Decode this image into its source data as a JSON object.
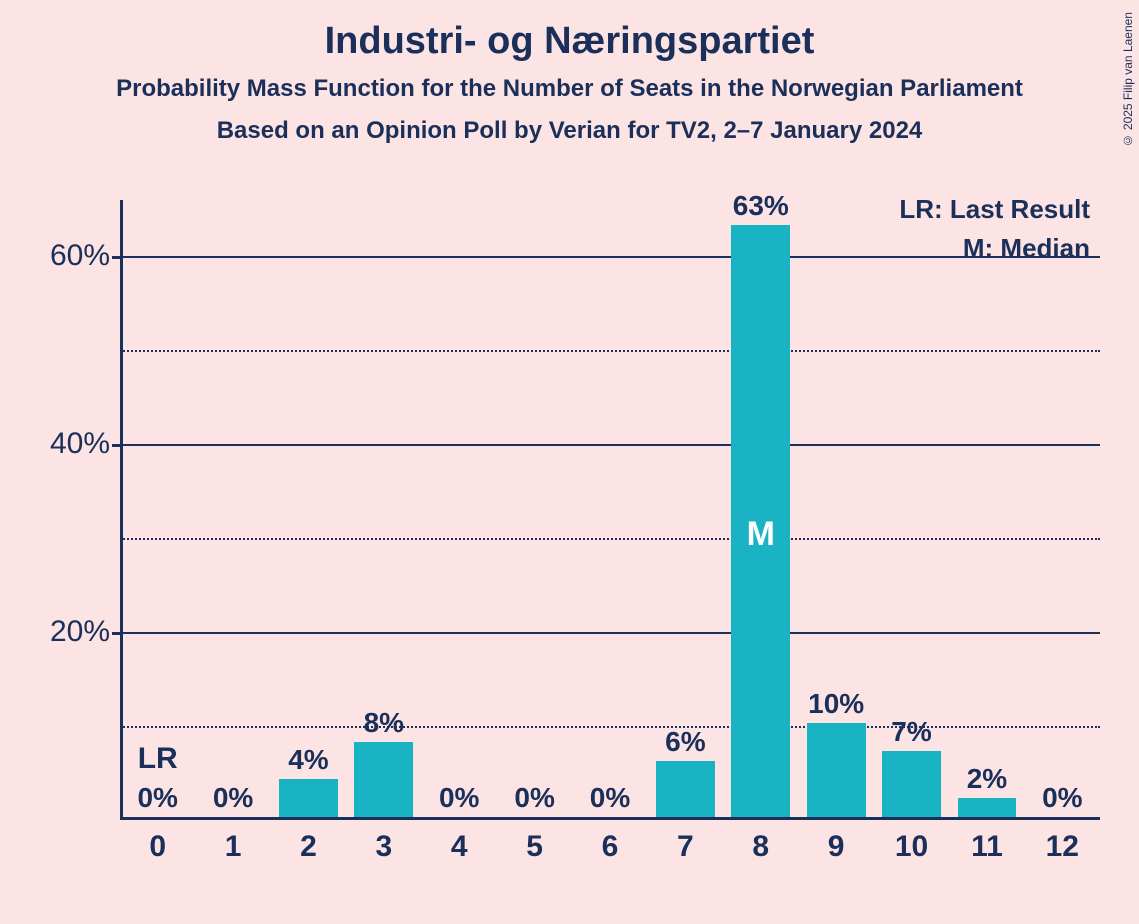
{
  "title": "Industri- og Næringspartiet",
  "subtitle1": "Probability Mass Function for the Number of Seats in the Norwegian Parliament",
  "subtitle2": "Based on an Opinion Poll by Verian for TV2, 2–7 January 2024",
  "copyright": "© 2025 Filip van Laenen",
  "legend": {
    "lr": "LR: Last Result",
    "m": "M: Median"
  },
  "chart": {
    "type": "bar",
    "background_color": "#fce4e4",
    "bar_color": "#1ab3c4",
    "axis_color": "#1a2f5a",
    "text_color": "#1a2f5a",
    "marker_text_color": "#ffffff",
    "ylim_max": 66,
    "y_major_ticks": [
      20,
      40,
      60
    ],
    "y_minor_ticks": [
      10,
      30,
      50
    ],
    "y_tick_suffix": "%",
    "categories": [
      "0",
      "1",
      "2",
      "3",
      "4",
      "5",
      "6",
      "7",
      "8",
      "9",
      "10",
      "11",
      "12"
    ],
    "values": [
      0,
      0,
      4,
      8,
      0,
      0,
      0,
      6,
      63,
      10,
      7,
      2,
      0
    ],
    "value_labels": [
      "0%",
      "0%",
      "4%",
      "8%",
      "0%",
      "0%",
      "0%",
      "6%",
      "63%",
      "10%",
      "7%",
      "2%",
      "0%"
    ],
    "markers": {
      "lr_index": 0,
      "lr_label": "LR",
      "median_index": 8,
      "median_label": "M"
    },
    "bar_width_ratio": 0.78,
    "title_fontsize": 38,
    "subtitle_fontsize": 24,
    "axis_label_fontsize": 30,
    "value_label_fontsize": 28,
    "legend_fontsize": 26
  }
}
